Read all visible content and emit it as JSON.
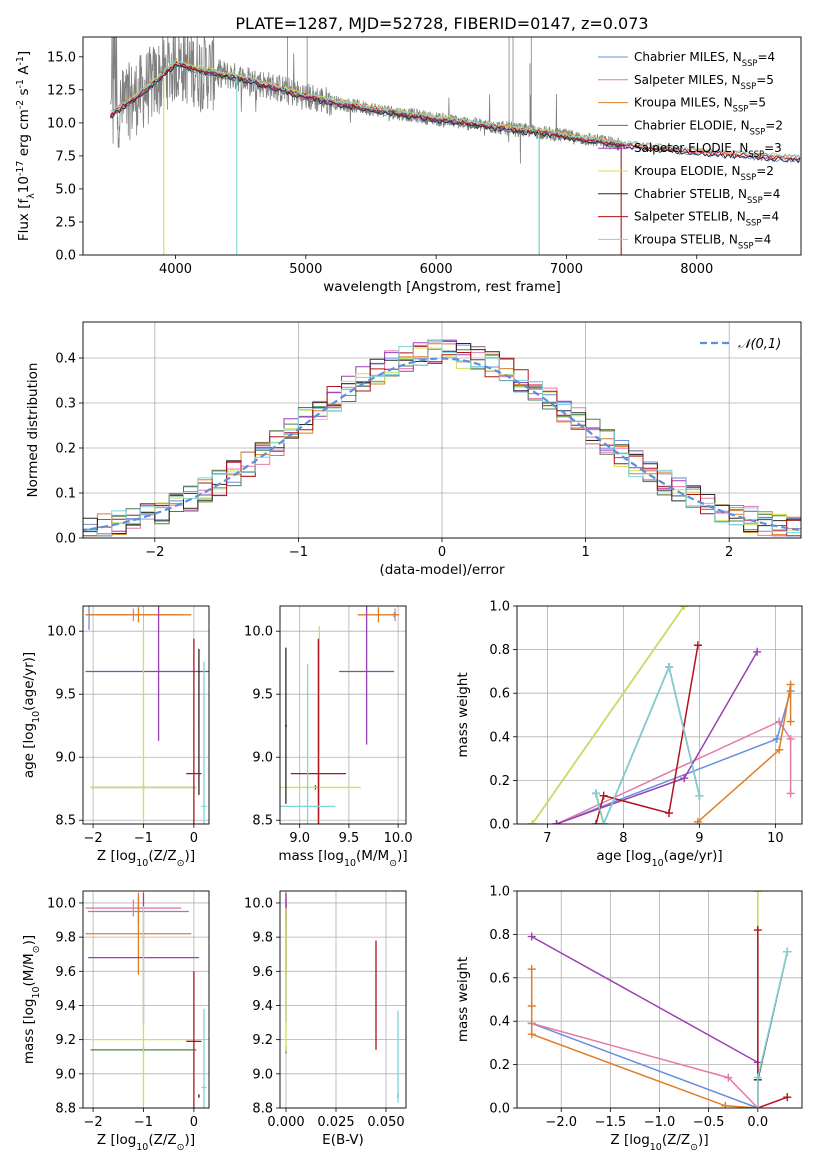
{
  "figure_title": "PLATE=1287, MJD=52728, FIBERID=0147, z=0.073",
  "colors": {
    "Chabrier MILES": "#6a8fdc",
    "Salpeter MILES": "#e47aa8",
    "Kroupa MILES": "#e07e26",
    "Chabrier ELODIE": "#4c8050",
    "Salpeter ELODIE": "#9b3fb5",
    "Kroupa ELODIE": "#c9e35a",
    "Chabrier STELIB": "#2a2a2a",
    "Salpeter STELIB": "#b3121a",
    "Kroupa STELIB": "#7fd5d9",
    "data": "#808080",
    "normal": "#5b8fdb"
  },
  "chart_data": [
    {
      "id": "spectrum",
      "type": "line",
      "title": "PLATE=1287, MJD=52728, FIBERID=0147, z=0.073",
      "xlabel": "wavelength [Angstrom, rest frame]",
      "ylabel": "Flux [f$_\\lambda$10$^{-17}$ erg cm$^{-2}$ s$^{-1}$ A$^{-1}$]",
      "xlim": [
        3290,
        8800
      ],
      "ylim": [
        0,
        16.5
      ],
      "xticks": [
        4000,
        5000,
        6000,
        7000,
        8000
      ],
      "yticks": [
        0.0,
        2.5,
        5.0,
        7.5,
        10.0,
        12.5,
        15.0
      ],
      "legend_position": "top-right",
      "legend": [
        "Chabrier MILES, N$_{SSP}$=4",
        "Salpeter MILES, N$_{SSP}$=5",
        "Kroupa MILES, N$_{SSP}$=5",
        "Chabrier ELODIE, N$_{SSP}$=2",
        "Salpeter ELODIE, N$_{SSP}$=3",
        "Kroupa ELODIE, N$_{SSP}$=2",
        "Chabrier STELIB, N$_{SSP}$=4",
        "Salpeter STELIB, N$_{SSP}$=4",
        "Kroupa STELIB, N$_{SSP}$=4"
      ],
      "continuum": {
        "x": [
          3500,
          3700,
          3850,
          4000,
          4200,
          4500,
          4800,
          5000,
          5300,
          5600,
          6000,
          6300,
          6600,
          6800,
          7000,
          7200,
          7400,
          7600,
          7800,
          8000,
          8300,
          8600,
          8800
        ],
        "y": [
          10.6,
          12.0,
          13.2,
          14.5,
          14.0,
          13.4,
          12.6,
          12.0,
          11.4,
          10.9,
          10.3,
          9.9,
          9.5,
          9.3,
          9.0,
          8.7,
          8.4,
          8.2,
          8.0,
          7.8,
          7.6,
          7.4,
          7.3
        ]
      }
    },
    {
      "id": "residuals",
      "type": "line",
      "xlabel": "(data-model)/error",
      "ylabel": "Normed distribution",
      "xlim": [
        -2.5,
        2.5
      ],
      "ylim": [
        0,
        0.48
      ],
      "xticks": [
        -2,
        -1,
        0,
        1,
        2
      ],
      "yticks": [
        0.0,
        0.1,
        0.2,
        0.3,
        0.4
      ],
      "legend_position": "top-right",
      "legend": [
        "$\\mathcal{N}(0,1)$"
      ],
      "normal_mean": 0,
      "normal_sigma": 1
    },
    {
      "id": "age-vs-Z",
      "type": "scatter",
      "xlabel": "Z [log$_{10}$(Z/Z$_\\odot$)]",
      "ylabel": "age  [log$_{10}$(age/yr)]",
      "xlim": [
        -2.2,
        0.3
      ],
      "ylim": [
        8.47,
        10.2
      ],
      "xticks": [
        -2,
        -1,
        0
      ],
      "yticks": [
        8.5,
        9.0,
        9.5,
        10.0
      ],
      "points": [
        {
          "model": "Chabrier MILES",
          "x": -2.08,
          "y": 10.13,
          "xerr": 0.06,
          "yerr": 0.12
        },
        {
          "model": "Salpeter MILES",
          "x": -1.2,
          "y": 10.13,
          "xerr": 0.95,
          "yerr": 0.05
        },
        {
          "model": "Kroupa MILES",
          "x": -1.1,
          "y": 10.13,
          "xerr": 1.05,
          "yerr": 0.06
        },
        {
          "model": "Chabrier ELODIE",
          "x": -1.0,
          "y": 8.76,
          "xerr": 1.05,
          "yerr": 0.02
        },
        {
          "model": "Salpeter ELODIE",
          "x": -0.7,
          "y": 9.68,
          "xerr": 1.45,
          "yerr": 0.55
        },
        {
          "model": "Kroupa ELODIE",
          "x": -1.0,
          "y": 8.76,
          "xerr": 1.05,
          "yerr": 1.25
        },
        {
          "model": "Chabrier STELIB",
          "x": 0.1,
          "y": 9.28,
          "xerr": 0.01,
          "yerr": 0.58
        },
        {
          "model": "Salpeter STELIB",
          "x": 0.0,
          "y": 8.87,
          "xerr": 0.15,
          "yerr": 1.07
        },
        {
          "model": "Kroupa STELIB",
          "x": 0.2,
          "y": 8.61,
          "xerr": 0.05,
          "yerr": 1.15
        }
      ]
    },
    {
      "id": "age-vs-mass",
      "type": "scatter",
      "xlabel": "mass [log$_{10}$(M/M$_\\odot$)]",
      "ylabel": "",
      "xlim": [
        8.8,
        10.08
      ],
      "ylim": [
        8.47,
        10.2
      ],
      "xticks": [
        9.0,
        9.5,
        10.0
      ],
      "yticks": [
        8.5,
        9.0,
        9.5,
        10.0
      ],
      "points": [
        {
          "model": "Chabrier MILES",
          "x": 9.96,
          "y": 10.13,
          "xerr": 0.05,
          "yerr": 0.02
        },
        {
          "model": "Salpeter MILES",
          "x": 9.97,
          "y": 10.13,
          "xerr": 0.04,
          "yerr": 0.05
        },
        {
          "model": "Kroupa MILES",
          "x": 9.8,
          "y": 10.13,
          "xerr": 0.21,
          "yerr": 0.06
        },
        {
          "model": "Chabrier ELODIE",
          "x": 9.16,
          "y": 8.76,
          "xerr": 0.02,
          "yerr": 0.02
        },
        {
          "model": "Salpeter ELODIE",
          "x": 9.68,
          "y": 9.68,
          "xerr": 0.28,
          "yerr": 0.58
        },
        {
          "model": "Kroupa ELODIE",
          "x": 9.2,
          "y": 8.76,
          "xerr": 0.42,
          "yerr": 1.28
        },
        {
          "model": "Chabrier STELIB",
          "x": 8.86,
          "y": 9.25,
          "xerr": 0.01,
          "yerr": 0.62
        },
        {
          "model": "Salpeter STELIB",
          "x": 9.19,
          "y": 8.87,
          "xerr": 0.28,
          "yerr": 1.07
        },
        {
          "model": "Kroupa STELIB",
          "x": 9.08,
          "y": 8.61,
          "xerr": 0.28,
          "yerr": 1.13
        }
      ]
    },
    {
      "id": "weight-vs-age",
      "type": "line",
      "xlabel": "age  [log$_{10}$(age/yr)]",
      "ylabel": "mass weight",
      "xlim": [
        6.6,
        10.35
      ],
      "ylim": [
        0,
        1.0
      ],
      "xticks": [
        7,
        8,
        9,
        10
      ],
      "yticks": [
        0.0,
        0.2,
        0.4,
        0.6,
        0.8,
        1.0
      ],
      "series": [
        {
          "model": "Chabrier MILES",
          "x": [
            7.12,
            10.02,
            10.2
          ],
          "y": [
            0.0,
            0.39,
            0.61
          ]
        },
        {
          "model": "Salpeter MILES",
          "x": [
            7.12,
            10.05,
            10.2,
            10.2
          ],
          "y": [
            0.0,
            0.47,
            0.39,
            0.14
          ]
        },
        {
          "model": "Kroupa MILES",
          "x": [
            8.98,
            10.05,
            10.2,
            10.2
          ],
          "y": [
            0.01,
            0.34,
            0.64,
            0.47
          ]
        },
        {
          "model": "Chabrier ELODIE",
          "x": [
            6.8,
            8.8
          ],
          "y": [
            0.0,
            1.0
          ]
        },
        {
          "model": "Salpeter ELODIE",
          "x": [
            7.12,
            8.8,
            9.76
          ],
          "y": [
            0.0,
            0.21,
            0.79
          ]
        },
        {
          "model": "Kroupa ELODIE",
          "x": [
            6.8,
            8.8
          ],
          "y": [
            0.0,
            1.0
          ]
        },
        {
          "model": "Chabrier STELIB",
          "x": [
            7.64,
            7.74,
            8.6,
            9.0
          ],
          "y": [
            0.14,
            0.0,
            0.72,
            0.13
          ]
        },
        {
          "model": "Salpeter STELIB",
          "x": [
            7.64,
            7.74,
            8.6,
            8.98
          ],
          "y": [
            0.0,
            0.13,
            0.05,
            0.82
          ]
        },
        {
          "model": "Kroupa STELIB",
          "x": [
            7.64,
            7.74,
            8.6,
            9.0
          ],
          "y": [
            0.14,
            0.0,
            0.72,
            0.13
          ]
        }
      ]
    },
    {
      "id": "mass-vs-Z",
      "type": "scatter",
      "xlabel": "Z [log$_{10}$(Z/Z$_\\odot$)]",
      "ylabel": "mass [log$_{10}$(M/M$_\\odot$)]",
      "xlim": [
        -2.2,
        0.3
      ],
      "ylim": [
        8.8,
        10.07
      ],
      "xticks": [
        -2,
        -1,
        0
      ],
      "yticks": [
        8.8,
        9.0,
        9.2,
        9.4,
        9.6,
        9.8,
        10.0
      ],
      "points": [
        {
          "model": "Chabrier MILES",
          "x": -1.1,
          "y": 9.95,
          "xerr": 1.0,
          "yerr": 0.08
        },
        {
          "model": "Salpeter MILES",
          "x": -1.2,
          "y": 9.97,
          "xerr": 0.95,
          "yerr": 0.05
        },
        {
          "model": "Kroupa MILES",
          "x": -1.1,
          "y": 9.82,
          "xerr": 1.05,
          "yerr": 0.24
        },
        {
          "model": "Chabrier ELODIE",
          "x": -1.0,
          "y": 9.14,
          "xerr": 1.05,
          "yerr": 0.02
        },
        {
          "model": "Salpeter ELODIE",
          "x": -1.0,
          "y": 9.68,
          "xerr": 1.1,
          "yerr": 0.38
        },
        {
          "model": "Kroupa ELODIE",
          "x": -1.0,
          "y": 9.2,
          "xerr": 1.05,
          "yerr": 0.78
        },
        {
          "model": "Chabrier STELIB",
          "x": 0.1,
          "y": 8.87,
          "xerr": 0.01,
          "yerr": 0.01
        },
        {
          "model": "Salpeter STELIB",
          "x": 0.0,
          "y": 9.19,
          "xerr": 0.15,
          "yerr": 0.41
        },
        {
          "model": "Kroupa STELIB",
          "x": 0.2,
          "y": 8.92,
          "xerr": 0.05,
          "yerr": 0.46
        }
      ]
    },
    {
      "id": "mass-vs-EBV",
      "type": "scatter",
      "xlabel": "E(B-V)",
      "ylabel": "",
      "xlim": [
        -0.003,
        0.06
      ],
      "ylim": [
        8.8,
        10.07
      ],
      "xticks": [
        0.0,
        0.025,
        0.05
      ],
      "xtick_labels": [
        "0.000",
        "0.025",
        "0.050"
      ],
      "yticks": [
        8.8,
        9.0,
        9.2,
        9.4,
        9.6,
        9.8,
        10.0
      ],
      "points": [
        {
          "model": "Chabrier MILES",
          "x": 0.0,
          "y": 9.95,
          "yerr": 0.08
        },
        {
          "model": "Salpeter MILES",
          "x": 0.0,
          "y": 9.97,
          "yerr": 0.05
        },
        {
          "model": "Kroupa MILES",
          "x": 0.0,
          "y": 9.82,
          "yerr": 0.24
        },
        {
          "model": "Chabrier ELODIE",
          "x": 0.0,
          "y": 9.14,
          "yerr": 0.02
        },
        {
          "model": "Salpeter ELODIE",
          "x": 0.0,
          "y": 9.68,
          "yerr": 0.38
        },
        {
          "model": "Kroupa ELODIE",
          "x": 0.0,
          "y": 9.55,
          "yerr": 0.42
        },
        {
          "model": "Chabrier STELIB",
          "x": 0.056,
          "y": 8.87,
          "yerr": 0.01
        },
        {
          "model": "Salpeter STELIB",
          "x": 0.045,
          "y": 9.46,
          "yerr": 0.32
        },
        {
          "model": "Kroupa STELIB",
          "x": 0.056,
          "y": 9.1,
          "yerr": 0.27
        }
      ]
    },
    {
      "id": "weight-vs-Z",
      "type": "line",
      "xlabel": "Z [log$_{10}$(Z/Z$_\\odot$)]",
      "ylabel": "mass weight",
      "xlim": [
        -2.45,
        0.45
      ],
      "ylim": [
        0,
        1.0
      ],
      "xticks": [
        -2.0,
        -1.5,
        -1.0,
        -0.5,
        0.0
      ],
      "yticks": [
        0.0,
        0.2,
        0.4,
        0.6,
        0.8,
        1.0
      ],
      "series": [
        {
          "model": "Chabrier MILES",
          "x": [
            -2.3,
            0.0
          ],
          "y": [
            0.39,
            0.0
          ]
        },
        {
          "model": "Salpeter MILES",
          "x": [
            -2.3,
            -0.3,
            0.0
          ],
          "y": [
            0.39,
            0.14,
            0.0
          ]
        },
        {
          "model": "Kroupa MILES",
          "x": [
            -2.3,
            -2.3,
            -2.3,
            -0.33,
            0.0
          ],
          "y": [
            0.64,
            0.47,
            0.34,
            0.01,
            0.0
          ]
        },
        {
          "model": "Chabrier ELODIE",
          "x": [
            0.0,
            0.0
          ],
          "y": [
            0.0,
            1.0
          ]
        },
        {
          "model": "Salpeter ELODIE",
          "x": [
            -2.3,
            0.0,
            0.0
          ],
          "y": [
            0.79,
            0.21,
            0.0
          ]
        },
        {
          "model": "Kroupa ELODIE",
          "x": [
            0.0,
            0.0
          ],
          "y": [
            0.0,
            1.0
          ]
        },
        {
          "model": "Chabrier STELIB",
          "x": [
            0.0,
            0.0,
            0.3
          ],
          "y": [
            0.0,
            0.13,
            0.72
          ]
        },
        {
          "model": "Salpeter STELIB",
          "x": [
            0.0,
            0.0,
            0.3
          ],
          "y": [
            0.82,
            0.0,
            0.05
          ]
        },
        {
          "model": "Kroupa STELIB",
          "x": [
            0.0,
            0.0,
            0.3
          ],
          "y": [
            0.0,
            0.14,
            0.72
          ]
        }
      ]
    }
  ]
}
